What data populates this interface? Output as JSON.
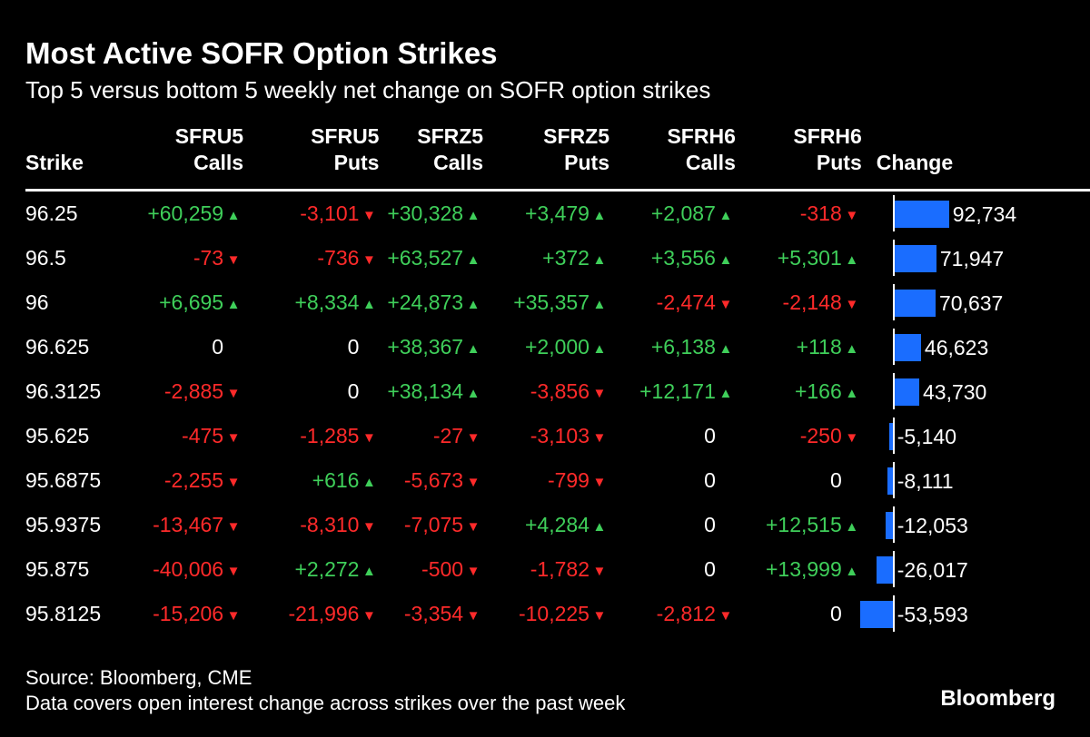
{
  "header": {
    "title": "Most Active SOFR Option Strikes",
    "subtitle": "Top 5 versus bottom 5 weekly net change on SOFR option strikes"
  },
  "columns": [
    {
      "line1": "Strike",
      "line2": ""
    },
    {
      "line1": "SFRU5",
      "line2": "Calls"
    },
    {
      "line1": "SFRU5",
      "line2": "Puts"
    },
    {
      "line1": "SFRZ5",
      "line2": "Calls"
    },
    {
      "line1": "SFRZ5",
      "line2": "Puts"
    },
    {
      "line1": "SFRH6",
      "line2": "Calls"
    },
    {
      "line1": "SFRH6",
      "line2": "Puts"
    },
    {
      "line1": "Change",
      "line2": ""
    }
  ],
  "chart_data": {
    "type": "table",
    "title": "Most Active SOFR Option Strikes",
    "subtitle": "Top 5 versus bottom 5 weekly net change on SOFR option strikes",
    "change_max_abs": 92734,
    "rows": [
      {
        "strike": "96.25",
        "cells": [
          "+60,259",
          "-3,101",
          "+30,328",
          "+3,479",
          "+2,087",
          "-318"
        ],
        "change": 92734,
        "change_label": "92,734"
      },
      {
        "strike": "96.5",
        "cells": [
          "-73",
          "-736",
          "+63,527",
          "+372",
          "+3,556",
          "+5,301"
        ],
        "change": 71947,
        "change_label": "71,947"
      },
      {
        "strike": "96",
        "cells": [
          "+6,695",
          "+8,334",
          "+24,873",
          "+35,357",
          "-2,474",
          "-2,148"
        ],
        "change": 70637,
        "change_label": "70,637"
      },
      {
        "strike": "96.625",
        "cells": [
          "0",
          "0",
          "+38,367",
          "+2,000",
          "+6,138",
          "+118"
        ],
        "change": 46623,
        "change_label": "46,623"
      },
      {
        "strike": "96.3125",
        "cells": [
          "-2,885",
          "0",
          "+38,134",
          "-3,856",
          "+12,171",
          "+166"
        ],
        "change": 43730,
        "change_label": "43,730"
      },
      {
        "strike": "95.625",
        "cells": [
          "-475",
          "-1,285",
          "-27",
          "-3,103",
          "0",
          "-250"
        ],
        "change": -5140,
        "change_label": "-5,140"
      },
      {
        "strike": "95.6875",
        "cells": [
          "-2,255",
          "+616",
          "-5,673",
          "-799",
          "0",
          "0"
        ],
        "change": -8111,
        "change_label": "-8,111"
      },
      {
        "strike": "95.9375",
        "cells": [
          "-13,467",
          "-8,310",
          "-7,075",
          "+4,284",
          "0",
          "+12,515"
        ],
        "change": -12053,
        "change_label": "-12,053"
      },
      {
        "strike": "95.875",
        "cells": [
          "-40,006",
          "+2,272",
          "-500",
          "-1,782",
          "0",
          "+13,999"
        ],
        "change": -26017,
        "change_label": "-26,017"
      },
      {
        "strike": "95.8125",
        "cells": [
          "-15,206",
          "-21,996",
          "-3,354",
          "-10,225",
          "-2,812",
          "0"
        ],
        "change": -53593,
        "change_label": "-53,593"
      }
    ]
  },
  "colors": {
    "up": "#3fcf5a",
    "down": "#ff2a2a",
    "bar": "#1a6dff",
    "background": "#000000"
  },
  "footer": {
    "source": "Source: Bloomberg, CME",
    "note": "Data covers open interest change across strikes over the past week",
    "logo": "Bloomberg"
  }
}
